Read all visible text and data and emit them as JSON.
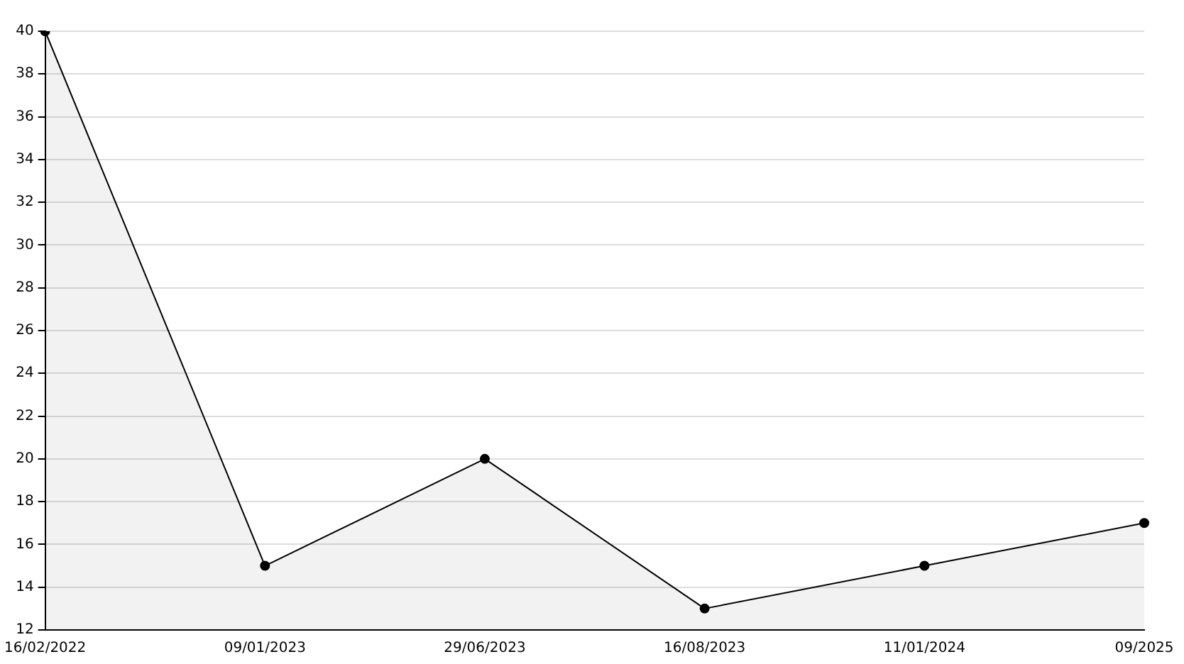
{
  "chart_data": {
    "type": "area",
    "categories": [
      "16/02/2022",
      "09/01/2023",
      "29/06/2023",
      "16/08/2023",
      "11/01/2024",
      "09/2025"
    ],
    "series": [
      {
        "color": "#000000",
        "values": [
          40,
          15,
          20,
          13,
          15,
          17
        ]
      }
    ],
    "ylim": [
      12,
      40
    ],
    "yticks": [
      12,
      14,
      16,
      18,
      20,
      22,
      24,
      26,
      28,
      30,
      32,
      34,
      36,
      38,
      40
    ],
    "grid": "y",
    "marker": "circle",
    "line_style": "solid",
    "legend": false
  }
}
